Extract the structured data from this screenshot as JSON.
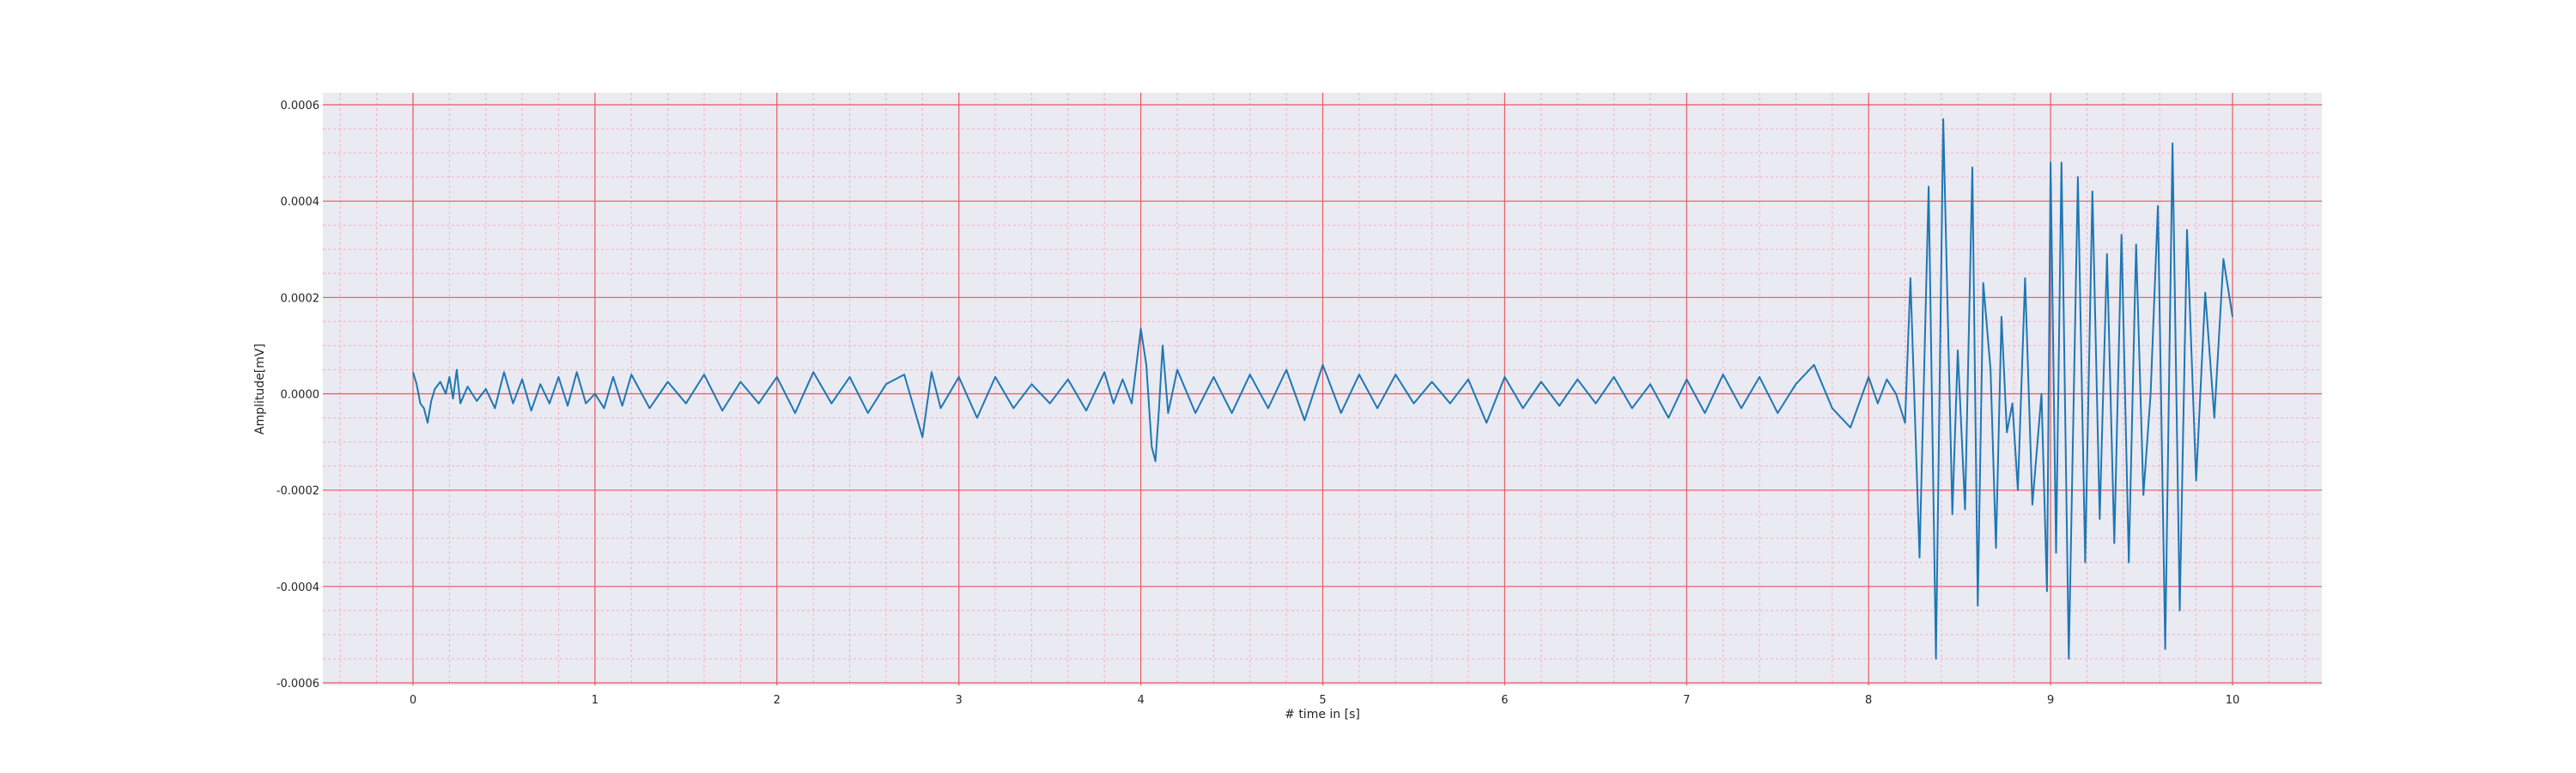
{
  "chart_data": {
    "type": "line",
    "title": "",
    "xlabel": "# time in [s]",
    "ylabel": "Amplitude[mV]",
    "xlim": [
      -0.5,
      10.5
    ],
    "ylim": [
      -0.0006,
      0.0006
    ],
    "x_ticks": [
      0,
      1,
      2,
      3,
      4,
      5,
      6,
      7,
      8,
      9,
      10
    ],
    "x_tick_labels": [
      "0",
      "1",
      "2",
      "3",
      "4",
      "5",
      "6",
      "7",
      "8",
      "9",
      "10"
    ],
    "y_ticks": [
      -0.0006,
      -0.0004,
      -0.0002,
      0.0,
      0.0002,
      0.0004,
      0.0006
    ],
    "y_tick_labels": [
      "-0.0006",
      "-0.0004",
      "-0.0002",
      "0.0000",
      "0.0002",
      "0.0004",
      "0.0006"
    ],
    "grid": "on (major red, minor pink)",
    "colors": {
      "background": "#EAEAF2",
      "major_grid": "#E8585E",
      "minor_grid": "#F4AFC0",
      "line": "#1F77B4"
    },
    "series": [
      {
        "color": "#1F77B4",
        "points": [
          [
            0.0,
            4.5e-05
          ],
          [
            0.02,
            2e-05
          ],
          [
            0.04,
            -2e-05
          ],
          [
            0.06,
            -3e-05
          ],
          [
            0.08,
            -6e-05
          ],
          [
            0.1,
            -1.5e-05
          ],
          [
            0.12,
            1e-05
          ],
          [
            0.15,
            2.5e-05
          ],
          [
            0.18,
            0.0
          ],
          [
            0.2,
            3.5e-05
          ],
          [
            0.22,
            -1e-05
          ],
          [
            0.24,
            5e-05
          ],
          [
            0.26,
            -2e-05
          ],
          [
            0.3,
            1.5e-05
          ],
          [
            0.35,
            -1.5e-05
          ],
          [
            0.4,
            1e-05
          ],
          [
            0.45,
            -3e-05
          ],
          [
            0.5,
            4.5e-05
          ],
          [
            0.55,
            -2e-05
          ],
          [
            0.6,
            3e-05
          ],
          [
            0.65,
            -3.5e-05
          ],
          [
            0.7,
            2e-05
          ],
          [
            0.75,
            -2e-05
          ],
          [
            0.8,
            3.5e-05
          ],
          [
            0.85,
            -2.5e-05
          ],
          [
            0.9,
            4.5e-05
          ],
          [
            0.95,
            -2e-05
          ],
          [
            1.0,
            0.0
          ],
          [
            1.05,
            -3e-05
          ],
          [
            1.1,
            3.5e-05
          ],
          [
            1.15,
            -2.5e-05
          ],
          [
            1.2,
            4e-05
          ],
          [
            1.3,
            -3e-05
          ],
          [
            1.4,
            2.5e-05
          ],
          [
            1.5,
            -2e-05
          ],
          [
            1.6,
            4e-05
          ],
          [
            1.7,
            -3.5e-05
          ],
          [
            1.8,
            2.5e-05
          ],
          [
            1.9,
            -2e-05
          ],
          [
            2.0,
            3.5e-05
          ],
          [
            2.1,
            -4e-05
          ],
          [
            2.2,
            4.5e-05
          ],
          [
            2.3,
            -2e-05
          ],
          [
            2.4,
            3.5e-05
          ],
          [
            2.5,
            -4e-05
          ],
          [
            2.6,
            2e-05
          ],
          [
            2.7,
            4e-05
          ],
          [
            2.8,
            -9e-05
          ],
          [
            2.85,
            4.5e-05
          ],
          [
            2.9,
            -3e-05
          ],
          [
            3.0,
            3.5e-05
          ],
          [
            3.1,
            -5e-05
          ],
          [
            3.2,
            3.5e-05
          ],
          [
            3.3,
            -3e-05
          ],
          [
            3.4,
            2e-05
          ],
          [
            3.5,
            -2e-05
          ],
          [
            3.6,
            3e-05
          ],
          [
            3.7,
            -3.5e-05
          ],
          [
            3.8,
            4.5e-05
          ],
          [
            3.85,
            -2e-05
          ],
          [
            3.9,
            3e-05
          ],
          [
            3.95,
            -2e-05
          ],
          [
            4.0,
            0.000135
          ],
          [
            4.03,
            6e-05
          ],
          [
            4.06,
            -0.00011
          ],
          [
            4.08,
            -0.00014
          ],
          [
            4.1,
            -3e-05
          ],
          [
            4.12,
            0.0001
          ],
          [
            4.15,
            -4e-05
          ],
          [
            4.2,
            5e-05
          ],
          [
            4.3,
            -4e-05
          ],
          [
            4.4,
            3.5e-05
          ],
          [
            4.5,
            -4e-05
          ],
          [
            4.6,
            4e-05
          ],
          [
            4.7,
            -3e-05
          ],
          [
            4.8,
            5e-05
          ],
          [
            4.9,
            -5.5e-05
          ],
          [
            5.0,
            6e-05
          ],
          [
            5.1,
            -4e-05
          ],
          [
            5.2,
            4e-05
          ],
          [
            5.3,
            -3e-05
          ],
          [
            5.4,
            4e-05
          ],
          [
            5.5,
            -2e-05
          ],
          [
            5.6,
            2.5e-05
          ],
          [
            5.7,
            -2e-05
          ],
          [
            5.8,
            3e-05
          ],
          [
            5.9,
            -6e-05
          ],
          [
            6.0,
            3.5e-05
          ],
          [
            6.1,
            -3e-05
          ],
          [
            6.2,
            2.5e-05
          ],
          [
            6.3,
            -2.5e-05
          ],
          [
            6.4,
            3e-05
          ],
          [
            6.5,
            -2e-05
          ],
          [
            6.6,
            3.5e-05
          ],
          [
            6.7,
            -3e-05
          ],
          [
            6.8,
            2e-05
          ],
          [
            6.9,
            -5e-05
          ],
          [
            7.0,
            3e-05
          ],
          [
            7.1,
            -4e-05
          ],
          [
            7.2,
            4e-05
          ],
          [
            7.3,
            -3e-05
          ],
          [
            7.4,
            3.5e-05
          ],
          [
            7.5,
            -4e-05
          ],
          [
            7.6,
            2e-05
          ],
          [
            7.7,
            6e-05
          ],
          [
            7.8,
            -3e-05
          ],
          [
            7.9,
            -7e-05
          ],
          [
            8.0,
            3.5e-05
          ],
          [
            8.05,
            -2e-05
          ],
          [
            8.1,
            3e-05
          ],
          [
            8.15,
            0.0
          ],
          [
            8.2,
            -6e-05
          ],
          [
            8.23,
            0.00024
          ],
          [
            8.28,
            -0.00034
          ],
          [
            8.33,
            0.00043
          ],
          [
            8.37,
            -0.00055
          ],
          [
            8.41,
            0.00057
          ],
          [
            8.46,
            -0.00025
          ],
          [
            8.49,
            9e-05
          ],
          [
            8.53,
            -0.00024
          ],
          [
            8.57,
            0.00047
          ],
          [
            8.6,
            -0.00044
          ],
          [
            8.63,
            0.00023
          ],
          [
            8.67,
            5e-05
          ],
          [
            8.7,
            -0.00032
          ],
          [
            8.73,
            0.00016
          ],
          [
            8.76,
            -8e-05
          ],
          [
            8.79,
            -2e-05
          ],
          [
            8.82,
            -0.0002
          ],
          [
            8.86,
            0.00024
          ],
          [
            8.9,
            -0.00023
          ],
          [
            8.95,
            0.0
          ],
          [
            8.98,
            -0.00041
          ],
          [
            9.0,
            0.00048
          ],
          [
            9.03,
            -0.00033
          ],
          [
            9.06,
            0.00048
          ],
          [
            9.1,
            -0.00055
          ],
          [
            9.15,
            0.00045
          ],
          [
            9.19,
            -0.00035
          ],
          [
            9.23,
            0.00042
          ],
          [
            9.27,
            -0.00026
          ],
          [
            9.31,
            0.00029
          ],
          [
            9.35,
            -0.00031
          ],
          [
            9.39,
            0.00033
          ],
          [
            9.43,
            -0.00035
          ],
          [
            9.47,
            0.00031
          ],
          [
            9.51,
            -0.00021
          ],
          [
            9.55,
            0.0
          ],
          [
            9.59,
            0.00039
          ],
          [
            9.63,
            -0.00053
          ],
          [
            9.67,
            0.00052
          ],
          [
            9.71,
            -0.00045
          ],
          [
            9.75,
            0.00034
          ],
          [
            9.8,
            -0.00018
          ],
          [
            9.85,
            0.00021
          ],
          [
            9.9,
            -5e-05
          ],
          [
            9.95,
            0.00028
          ],
          [
            10.0,
            0.00016
          ]
        ]
      }
    ]
  }
}
